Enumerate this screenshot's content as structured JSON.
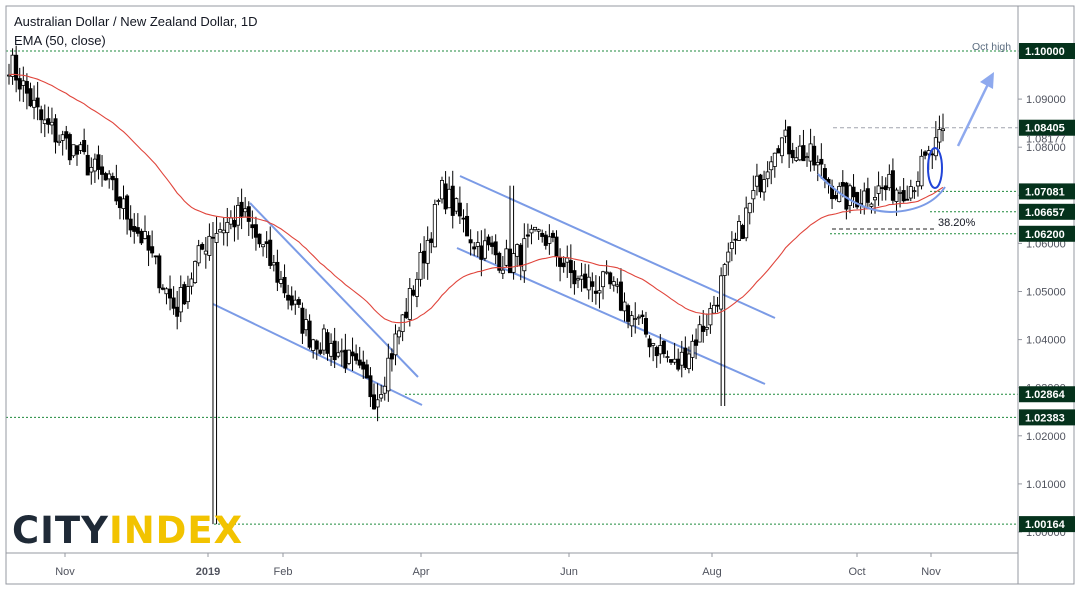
{
  "header": {
    "title": "Australian Dollar / New Zealand Dollar, 1D",
    "indicator": "EMA (50, close)"
  },
  "logo": {
    "part1": "CITY",
    "part2": "INDEX"
  },
  "colors": {
    "candle": "#000000",
    "ema": "#e0453c",
    "trendline": "#7b9be6",
    "level_line": "#1e8a3c",
    "label_bg": "#05321c",
    "label_text": "#ffffff",
    "arrow": "#8ea9ee",
    "ellipse": "#2144d8"
  },
  "chart_data": {
    "type": "candlestick",
    "title": "Australian Dollar / New Zealand Dollar, 1D",
    "indicator": "EMA (50, close)",
    "ylim": [
      1.0,
      1.1
    ],
    "y_ticks": [
      "1.10000",
      "1.09000",
      "1.08000",
      "1.07000",
      "1.06000",
      "1.05000",
      "1.04000",
      "1.03000",
      "1.02000",
      "1.01000",
      "1.00000"
    ],
    "x_ticks": [
      "Nov",
      "2019",
      "Feb",
      "Apr",
      "Jun",
      "Aug",
      "Oct",
      "Nov"
    ],
    "price_path": [
      [
        "Nov",
        1.098
      ],
      [
        "Nov",
        1.085
      ],
      [
        "Dec",
        1.079
      ],
      [
        "Dec",
        1.072
      ],
      [
        "Dec",
        1.061
      ],
      [
        "2019",
        1.046
      ],
      [
        "2019",
        1.062
      ],
      [
        "2019",
        1.066
      ],
      [
        "Feb",
        1.054
      ],
      [
        "Feb",
        1.041
      ],
      [
        "Mar",
        1.037
      ],
      [
        "Mar",
        1.028
      ],
      [
        "Apr",
        1.048
      ],
      [
        "Apr",
        1.071
      ],
      [
        "May",
        1.06
      ],
      [
        "May",
        1.056
      ],
      [
        "Jun",
        1.062
      ],
      [
        "Jun",
        1.052
      ],
      [
        "Jul",
        1.051
      ],
      [
        "Jul",
        1.042
      ],
      [
        "Aug",
        1.034
      ],
      [
        "Aug",
        1.045
      ],
      [
        "Sep",
        1.064
      ],
      [
        "Sep",
        1.082
      ],
      [
        "Oct",
        1.078
      ],
      [
        "Oct",
        1.069
      ],
      [
        "Oct",
        1.071
      ],
      [
        "Nov",
        1.072
      ],
      [
        "Nov",
        1.082
      ]
    ],
    "levels": [
      {
        "label": "1.10000",
        "value": 1.1,
        "note": "Oct high"
      },
      {
        "label": "1.08405",
        "value": 1.08405
      },
      {
        "label": "1.08177",
        "value": 1.08177
      },
      {
        "label": "1.07081",
        "value": 1.07081
      },
      {
        "label": "1.06657",
        "value": 1.06657
      },
      {
        "label": "1.06200",
        "value": 1.062
      },
      {
        "label": "1.02864",
        "value": 1.02864
      },
      {
        "label": "1.02383",
        "value": 1.02383
      },
      {
        "label": "1.00164",
        "value": 1.00164
      }
    ],
    "annotations": [
      "Oct high",
      "38.20%"
    ]
  }
}
